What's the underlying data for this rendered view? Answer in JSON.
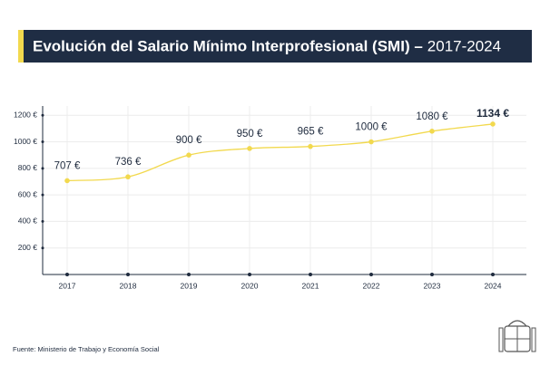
{
  "chart_data": {
    "type": "line",
    "title": "Evolución del Salario Mínimo Interprofesional (SMI) –",
    "subtitle": "2017-2024",
    "categories": [
      "2017",
      "2018",
      "2019",
      "2020",
      "2021",
      "2022",
      "2023",
      "2024"
    ],
    "values": [
      707,
      736,
      900,
      950,
      965,
      1000,
      1080,
      1134
    ],
    "value_labels": [
      "707 €",
      "736 €",
      "900 €",
      "950 €",
      "965 €",
      "1000 €",
      "1080 €",
      "1134 €"
    ],
    "color": "#f2d94e",
    "ylim": [
      0,
      1270
    ],
    "yticks": [
      {
        "value": 200,
        "label": "200 €"
      },
      {
        "value": 400,
        "label": "400 €"
      },
      {
        "value": 600,
        "label": "600 €"
      },
      {
        "value": 800,
        "label": "800 €"
      },
      {
        "value": 1000,
        "label": "1000 €"
      },
      {
        "value": 1200,
        "label": "1200 €"
      }
    ],
    "grid": true,
    "source": "Fuente: Ministerio de Trabajo y Economía Social"
  }
}
